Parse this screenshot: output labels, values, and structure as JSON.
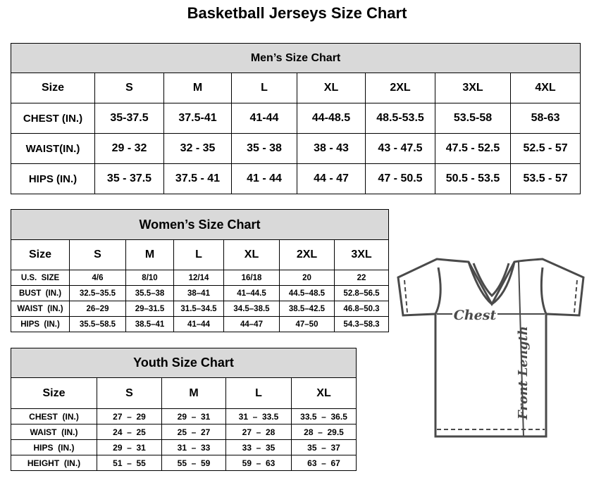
{
  "title": "Basketball Jerseys Size Chart",
  "men": {
    "heading": "Men’s Size Chart",
    "columns": [
      "Size",
      "S",
      "M",
      "L",
      "XL",
      "2XL",
      "3XL",
      "4XL"
    ],
    "rows": [
      [
        "CHEST (IN.)",
        "35-37.5",
        "37.5-41",
        "41-44",
        "44-48.5",
        "48.5-53.5",
        "53.5-58",
        "58-63"
      ],
      [
        "WAIST(IN.)",
        "29 - 32",
        "32 - 35",
        "35 - 38",
        "38 - 43",
        "43 - 47.5",
        "47.5 - 52.5",
        "52.5 - 57"
      ],
      [
        "HIPS (IN.)",
        "35 - 37.5",
        "37.5 - 41",
        "41 - 44",
        "44 - 47",
        "47 - 50.5",
        "50.5 - 53.5",
        "53.5 - 57"
      ]
    ]
  },
  "women": {
    "heading": "Women’s Size Chart",
    "columns": [
      "Size",
      "S",
      "M",
      "L",
      "XL",
      "2XL",
      "3XL"
    ],
    "rows": [
      [
        "U.S.  SIZE",
        "4/6",
        "8/10",
        "12/14",
        "16/18",
        "20",
        "22"
      ],
      [
        "BUST  (IN.)",
        "32.5–35.5",
        "35.5–38",
        "38–41",
        "41–44.5",
        "44.5–48.5",
        "52.8–56.5"
      ],
      [
        "WAIST  (IN.)",
        "26–29",
        "29–31.5",
        "31.5–34.5",
        "34.5–38.5",
        "38.5–42.5",
        "46.8–50.3"
      ],
      [
        "HIPS  (IN.)",
        "35.5–58.5",
        "38.5–41",
        "41–44",
        "44–47",
        "47–50",
        "54.3–58.3"
      ]
    ]
  },
  "youth": {
    "heading": "Youth Size Chart",
    "columns": [
      "Size",
      "S",
      "M",
      "L",
      "XL"
    ],
    "rows": [
      [
        "CHEST  (IN.)",
        "27  –  29",
        "29  –  31",
        "31  –  33.5",
        "33.5  –  36.5"
      ],
      [
        "WAIST  (IN.)",
        "24  –  25",
        "25  –  27",
        "27  –  28",
        "28  –  29.5"
      ],
      [
        "HIPS  (IN.)",
        "29  –  31",
        "31  –  33",
        "33  –  35",
        "35  –  37"
      ],
      [
        "HEIGHT  (IN.)",
        "51  –  55",
        "55  –  59",
        "59  –  63",
        "63  –  67"
      ]
    ]
  },
  "diagram": {
    "chest_label": "Chest",
    "length_label": "Front Length",
    "line_color": "#4a4a4a"
  }
}
